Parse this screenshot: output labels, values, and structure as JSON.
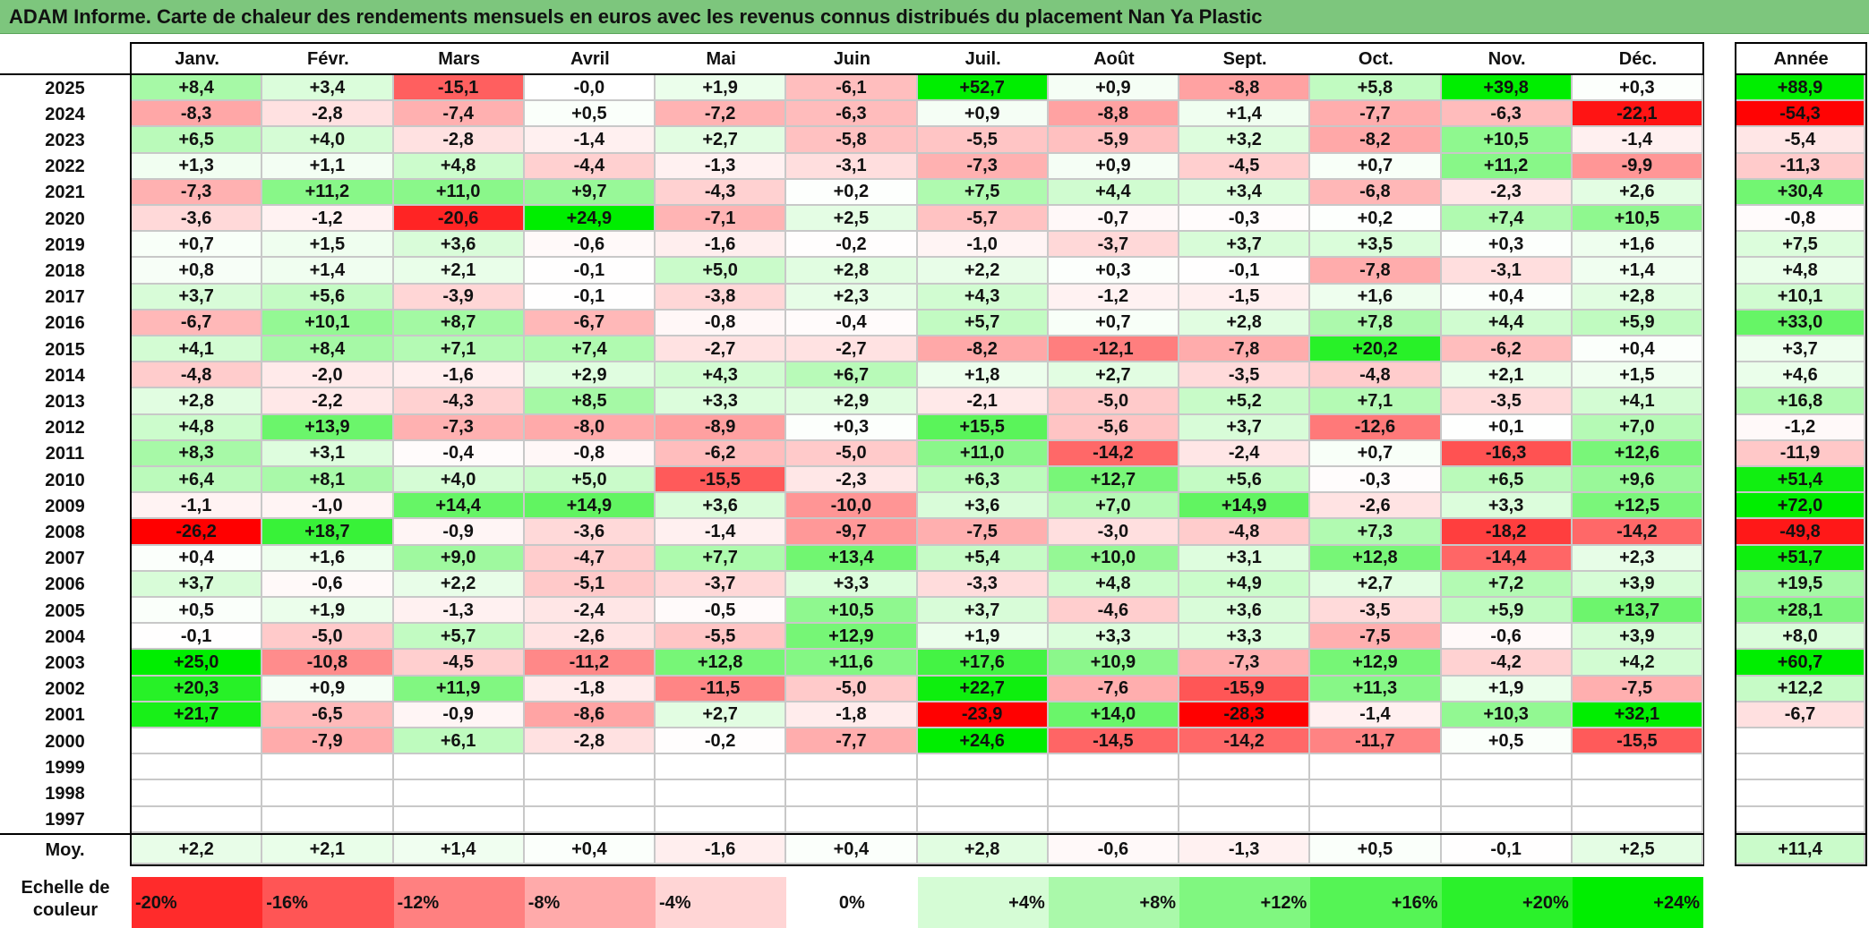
{
  "title": "ADAM Informe. Carte de chaleur des rendements mensuels en euros avec les revenus connus distribués du placement Nan Ya Plastic",
  "colors": {
    "title_bg": "#7dc67d",
    "neg_max": "#ff0000",
    "pos_max": "#00ee00",
    "neutral": "#ffffff"
  },
  "chart_data": {
    "type": "heatmap",
    "title": "ADAM Informe. Carte de chaleur des rendements mensuels en euros avec les revenus connus distribués du placement Nan Ya Plastic",
    "months": [
      "Janv.",
      "Févr.",
      "Mars",
      "Avril",
      "Mai",
      "Juin",
      "Juil.",
      "Août",
      "Sept.",
      "Oct.",
      "Nov.",
      "Déc."
    ],
    "year_header": "Année",
    "avg_label": "Moy.",
    "rows": [
      {
        "year": "2025",
        "values": [
          "+8,4",
          "+3,4",
          "-15,1",
          "-0,0",
          "+1,9",
          "-6,1",
          "+52,7",
          "+0,9",
          "-8,8",
          "+5,8",
          "+39,8",
          "+0,3"
        ],
        "annual": "+88,9"
      },
      {
        "year": "2024",
        "values": [
          "-8,3",
          "-2,8",
          "-7,4",
          "+0,5",
          "-7,2",
          "-6,3",
          "+0,9",
          "-8,8",
          "+1,4",
          "-7,7",
          "-6,3",
          "-22,1"
        ],
        "annual": "-54,3"
      },
      {
        "year": "2023",
        "values": [
          "+6,5",
          "+4,0",
          "-2,8",
          "-1,4",
          "+2,7",
          "-5,8",
          "-5,5",
          "-5,9",
          "+3,2",
          "-8,2",
          "+10,5",
          "-1,4"
        ],
        "annual": "-5,4"
      },
      {
        "year": "2022",
        "values": [
          "+1,3",
          "+1,1",
          "+4,8",
          "-4,4",
          "-1,3",
          "-3,1",
          "-7,3",
          "+0,9",
          "-4,5",
          "+0,7",
          "+11,2",
          "-9,9"
        ],
        "annual": "-11,3"
      },
      {
        "year": "2021",
        "values": [
          "-7,3",
          "+11,2",
          "+11,0",
          "+9,7",
          "-4,3",
          "+0,2",
          "+7,5",
          "+4,4",
          "+3,4",
          "-6,8",
          "-2,3",
          "+2,6"
        ],
        "annual": "+30,4"
      },
      {
        "year": "2020",
        "values": [
          "-3,6",
          "-1,2",
          "-20,6",
          "+24,9",
          "-7,1",
          "+2,5",
          "-5,7",
          "-0,7",
          "-0,3",
          "+0,2",
          "+7,4",
          "+10,5"
        ],
        "annual": "-0,8"
      },
      {
        "year": "2019",
        "values": [
          "+0,7",
          "+1,5",
          "+3,6",
          "-0,6",
          "-1,6",
          "-0,2",
          "-1,0",
          "-3,7",
          "+3,7",
          "+3,5",
          "+0,3",
          "+1,6"
        ],
        "annual": "+7,5"
      },
      {
        "year": "2018",
        "values": [
          "+0,8",
          "+1,4",
          "+2,1",
          "-0,1",
          "+5,0",
          "+2,8",
          "+2,2",
          "+0,3",
          "-0,1",
          "-7,8",
          "-3,1",
          "+1,4"
        ],
        "annual": "+4,8"
      },
      {
        "year": "2017",
        "values": [
          "+3,7",
          "+5,6",
          "-3,9",
          "-0,1",
          "-3,8",
          "+2,3",
          "+4,3",
          "-1,2",
          "-1,5",
          "+1,6",
          "+0,4",
          "+2,8"
        ],
        "annual": "+10,1"
      },
      {
        "year": "2016",
        "values": [
          "-6,7",
          "+10,1",
          "+8,7",
          "-6,7",
          "-0,8",
          "-0,4",
          "+5,7",
          "+0,7",
          "+2,8",
          "+7,8",
          "+4,4",
          "+5,9"
        ],
        "annual": "+33,0"
      },
      {
        "year": "2015",
        "values": [
          "+4,1",
          "+8,4",
          "+7,1",
          "+7,4",
          "-2,7",
          "-2,7",
          "-8,2",
          "-12,1",
          "-7,8",
          "+20,2",
          "-6,2",
          "+0,4"
        ],
        "annual": "+3,7"
      },
      {
        "year": "2014",
        "values": [
          "-4,8",
          "-2,0",
          "-1,6",
          "+2,9",
          "+4,3",
          "+6,7",
          "+1,8",
          "+2,7",
          "-3,5",
          "-4,8",
          "+2,1",
          "+1,5"
        ],
        "annual": "+4,6"
      },
      {
        "year": "2013",
        "values": [
          "+2,8",
          "-2,2",
          "-4,3",
          "+8,5",
          "+3,3",
          "+2,9",
          "-2,1",
          "-5,0",
          "+5,2",
          "+7,1",
          "-3,5",
          "+4,1"
        ],
        "annual": "+16,8"
      },
      {
        "year": "2012",
        "values": [
          "+4,8",
          "+13,9",
          "-7,3",
          "-8,0",
          "-8,9",
          "+0,3",
          "+15,5",
          "-5,6",
          "+3,7",
          "-12,6",
          "+0,1",
          "+7,0"
        ],
        "annual": "-1,2"
      },
      {
        "year": "2011",
        "values": [
          "+8,3",
          "+3,1",
          "-0,4",
          "-0,8",
          "-6,2",
          "-5,0",
          "+11,0",
          "-14,2",
          "-2,4",
          "+0,7",
          "-16,3",
          "+12,6"
        ],
        "annual": "-11,9"
      },
      {
        "year": "2010",
        "values": [
          "+6,4",
          "+8,1",
          "+4,0",
          "+5,0",
          "-15,5",
          "-2,3",
          "+6,3",
          "+12,7",
          "+5,6",
          "-0,3",
          "+6,5",
          "+9,6"
        ],
        "annual": "+51,4"
      },
      {
        "year": "2009",
        "values": [
          "-1,1",
          "-1,0",
          "+14,4",
          "+14,9",
          "+3,6",
          "-10,0",
          "+3,6",
          "+7,0",
          "+14,9",
          "-2,6",
          "+3,3",
          "+12,5"
        ],
        "annual": "+72,0"
      },
      {
        "year": "2008",
        "values": [
          "-26,2",
          "+18,7",
          "-0,9",
          "-3,6",
          "-1,4",
          "-9,7",
          "-7,5",
          "-3,0",
          "-4,8",
          "+7,3",
          "-18,2",
          "-14,2"
        ],
        "annual": "-49,8"
      },
      {
        "year": "2007",
        "values": [
          "+0,4",
          "+1,6",
          "+9,0",
          "-4,7",
          "+7,7",
          "+13,4",
          "+5,4",
          "+10,0",
          "+3,1",
          "+12,8",
          "-14,4",
          "+2,3"
        ],
        "annual": "+51,7"
      },
      {
        "year": "2006",
        "values": [
          "+3,7",
          "-0,6",
          "+2,2",
          "-5,1",
          "-3,7",
          "+3,3",
          "-3,3",
          "+4,8",
          "+4,9",
          "+2,7",
          "+7,2",
          "+3,9"
        ],
        "annual": "+19,5"
      },
      {
        "year": "2005",
        "values": [
          "+0,5",
          "+1,9",
          "-1,3",
          "-2,4",
          "-0,5",
          "+10,5",
          "+3,7",
          "-4,6",
          "+3,6",
          "-3,5",
          "+5,9",
          "+13,7"
        ],
        "annual": "+28,1"
      },
      {
        "year": "2004",
        "values": [
          "-0,1",
          "-5,0",
          "+5,7",
          "-2,6",
          "-5,5",
          "+12,9",
          "+1,9",
          "+3,3",
          "+3,3",
          "-7,5",
          "-0,6",
          "+3,9"
        ],
        "annual": "+8,0"
      },
      {
        "year": "2003",
        "values": [
          "+25,0",
          "-10,8",
          "-4,5",
          "-11,2",
          "+12,8",
          "+11,6",
          "+17,6",
          "+10,9",
          "-7,3",
          "+12,9",
          "-4,2",
          "+4,2"
        ],
        "annual": "+60,7"
      },
      {
        "year": "2002",
        "values": [
          "+20,3",
          "+0,9",
          "+11,9",
          "-1,8",
          "-11,5",
          "-5,0",
          "+22,7",
          "-7,6",
          "-15,9",
          "+11,3",
          "+1,9",
          "-7,5"
        ],
        "annual": "+12,2"
      },
      {
        "year": "2001",
        "values": [
          "+21,7",
          "-6,5",
          "-0,9",
          "-8,6",
          "+2,7",
          "-1,8",
          "-23,9",
          "+14,0",
          "-28,3",
          "-1,4",
          "+10,3",
          "+32,1"
        ],
        "annual": "-6,7"
      },
      {
        "year": "2000",
        "values": [
          "",
          "-7,9",
          "+6,1",
          "-2,8",
          "-0,2",
          "-7,7",
          "+24,6",
          "-14,5",
          "-14,2",
          "-11,7",
          "+0,5",
          "-15,5"
        ],
        "annual": ""
      },
      {
        "year": "1999",
        "values": [
          "",
          "",
          "",
          "",
          "",
          "",
          "",
          "",
          "",
          "",
          "",
          ""
        ],
        "annual": ""
      },
      {
        "year": "1998",
        "values": [
          "",
          "",
          "",
          "",
          "",
          "",
          "",
          "",
          "",
          "",
          "",
          ""
        ],
        "annual": ""
      },
      {
        "year": "1997",
        "values": [
          "",
          "",
          "",
          "",
          "",
          "",
          "",
          "",
          "",
          "",
          "",
          ""
        ],
        "annual": ""
      }
    ],
    "averages": {
      "values": [
        "+2,2",
        "+2,1",
        "+1,4",
        "+0,4",
        "-1,6",
        "+0,4",
        "+2,8",
        "-0,6",
        "-1,3",
        "+0,5",
        "-0,1",
        "+2,5"
      ],
      "annual": "+11,4"
    },
    "scale_label": "Echelle de couleur",
    "scale": [
      "-20%",
      "-16%",
      "-12%",
      "-8%",
      "-4%",
      "0%",
      "+4%",
      "+8%",
      "+12%",
      "+16%",
      "+20%",
      "+24%"
    ],
    "scale_values": [
      -20,
      -16,
      -12,
      -8,
      -4,
      0,
      4,
      8,
      12,
      16,
      20,
      24
    ]
  }
}
